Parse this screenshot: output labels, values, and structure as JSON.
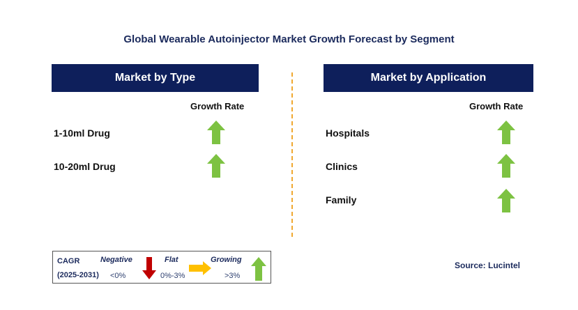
{
  "title": "Global Wearable Autoinjector Market Growth Forecast by Segment",
  "colors": {
    "header_bg": "#0e1f5b",
    "growing_arrow": "#7dc242",
    "negative_arrow": "#c00000",
    "flat_arrow": "#ffc000",
    "divider": "#f0a830"
  },
  "left_panel": {
    "header": "Market by Type",
    "growth_rate_label": "Growth Rate",
    "rows": [
      {
        "label": "1-10ml Drug",
        "trend": "growing"
      },
      {
        "label": "10-20ml Drug",
        "trend": "growing"
      }
    ]
  },
  "right_panel": {
    "header": "Market by Application",
    "growth_rate_label": "Growth Rate",
    "rows": [
      {
        "label": "Hospitals",
        "trend": "growing"
      },
      {
        "label": "Clinics",
        "trend": "growing"
      },
      {
        "label": "Family",
        "trend": "growing"
      }
    ]
  },
  "legend": {
    "cagr_label": "CAGR",
    "period": "(2025-2031)",
    "negative_label": "Negative",
    "negative_range": "<0%",
    "flat_label": "Flat",
    "flat_range": "0%-3%",
    "growing_label": "Growing",
    "growing_range": ">3%"
  },
  "source": "Source: Lucintel"
}
